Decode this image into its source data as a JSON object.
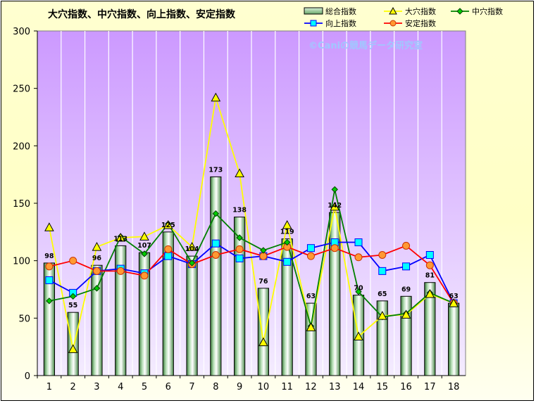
{
  "chart_data": {
    "type": "bar",
    "title": "大穴指数、中穴指数、向上指数、安定指数",
    "watermark": "©Caniの競馬データ研究室",
    "categories": [
      "1",
      "2",
      "3",
      "4",
      "5",
      "6",
      "7",
      "8",
      "9",
      "10",
      "11",
      "12",
      "13",
      "14",
      "15",
      "16",
      "17",
      "18"
    ],
    "ylim": [
      0,
      300
    ],
    "yticks": [
      0,
      50,
      100,
      150,
      200,
      250,
      300
    ],
    "legend_position": "top-right",
    "series": [
      {
        "name": "総合指数",
        "kind": "bar",
        "color": "#90c890",
        "values": [
          98,
          55,
          96,
          113,
          107,
          125,
          104,
          173,
          138,
          76,
          119,
          63,
          142,
          70,
          65,
          69,
          81,
          63
        ]
      },
      {
        "name": "大穴指数",
        "kind": "line",
        "marker": "triangle",
        "color": "#ffff00",
        "values": [
          129,
          23,
          112,
          120,
          121,
          131,
          112,
          242,
          176,
          29,
          131,
          42,
          147,
          34,
          52,
          53,
          71,
          63
        ]
      },
      {
        "name": "中穴指数",
        "kind": "line",
        "marker": "diamond",
        "color": "#008000",
        "values": [
          65,
          69,
          76,
          121,
          106,
          132,
          98,
          141,
          120,
          109,
          116,
          43,
          162,
          73,
          51,
          54,
          72,
          63
        ]
      },
      {
        "name": "向上指数",
        "kind": "line",
        "marker": "square",
        "color": "#0000ff",
        "values": [
          83,
          72,
          91,
          93,
          89,
          104,
          97,
          115,
          102,
          104,
          99,
          111,
          116,
          116,
          91,
          95,
          105,
          63
        ]
      },
      {
        "name": "安定指数",
        "kind": "line",
        "marker": "circle",
        "color": "#ff0000",
        "values": [
          95,
          100,
          91,
          91,
          87,
          110,
          97,
          105,
          110,
          104,
          112,
          104,
          111,
          103,
          105,
          113,
          96,
          63
        ]
      }
    ]
  }
}
